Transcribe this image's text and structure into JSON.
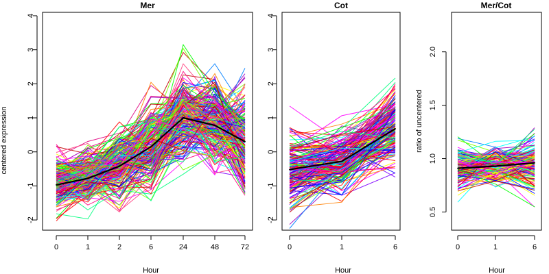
{
  "figure": {
    "ylabel_left": "centered expression"
  },
  "chart_data": [
    {
      "type": "line",
      "title": "Mer",
      "xlabel": "Hour",
      "ylabel": "centered expression",
      "x": [
        "0",
        "1",
        "2",
        "6",
        "24",
        "48",
        "72"
      ],
      "ylim": [
        -2.3,
        4.1
      ],
      "yticks": [
        -2,
        -1,
        0,
        1,
        2,
        3,
        4
      ],
      "grid": false,
      "legend": "none",
      "profiles": "several hundred individual gene profiles in rainbow colors",
      "series": [
        {
          "values": [
            -0.97,
            -0.78,
            -0.42,
            0.15,
            1.0,
            0.78,
            0.3
          ],
          "color": "#000000"
        }
      ]
    },
    {
      "type": "line",
      "title": "Cot",
      "xlabel": "Hour",
      "x": [
        "0",
        "1",
        "6"
      ],
      "ylim": [
        -2.3,
        4.1
      ],
      "yticks": [
        -2,
        -1,
        0,
        1,
        2,
        3,
        4
      ],
      "grid": false,
      "legend": "none",
      "series": [
        {
          "values": [
            -0.52,
            -0.28,
            0.68
          ],
          "color": "#000000"
        }
      ]
    },
    {
      "type": "line",
      "title": "Mer/Cot",
      "xlabel": "Hour",
      "ylabel": "ratio of uncentered",
      "x": [
        "0",
        "1",
        "6"
      ],
      "ylim": [
        0.33,
        2.37
      ],
      "yticks": [
        0.5,
        1.0,
        1.5,
        2.0
      ],
      "ytick_labels": [
        "0.5",
        "1.0",
        "1.5",
        "2.0"
      ],
      "grid": false,
      "legend": "none",
      "series": [
        {
          "values": [
            0.91,
            0.93,
            0.96
          ],
          "color": "#000000"
        }
      ]
    }
  ]
}
